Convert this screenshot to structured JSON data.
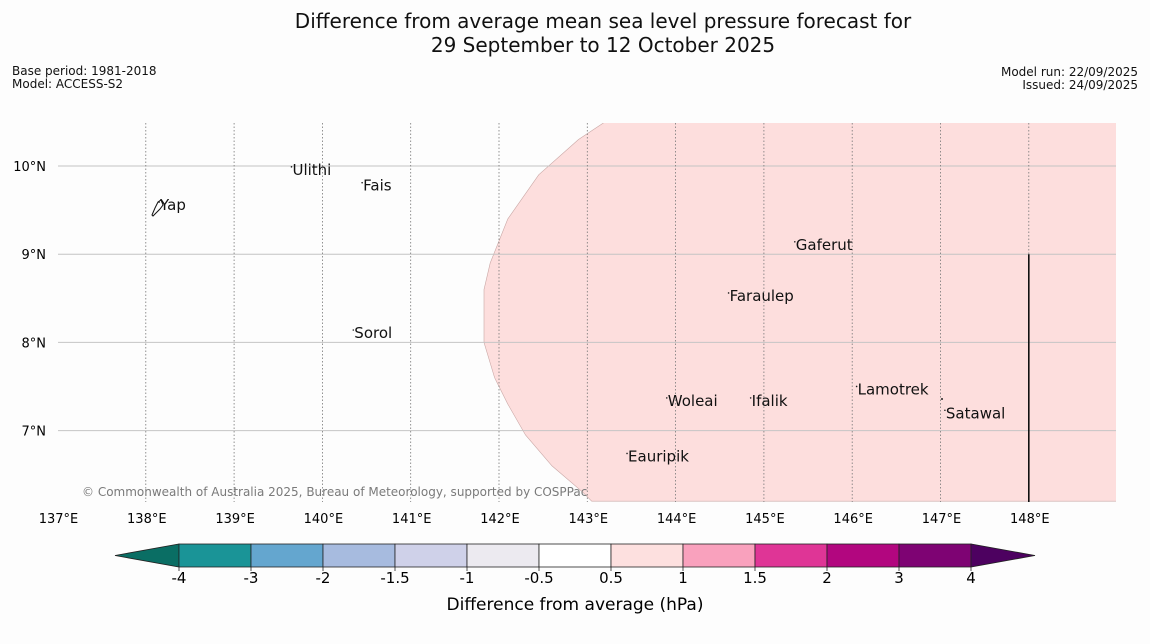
{
  "title": {
    "line1": "Difference from average mean sea level pressure forecast for",
    "line2": "29 September to 12 October 2025"
  },
  "meta_left": {
    "base_period": "Base period: 1981-2018",
    "model": "Model: ACCESS-S2"
  },
  "meta_right": {
    "model_run": "Model run: 22/09/2025",
    "issued": "Issued: 24/09/2025"
  },
  "map": {
    "lon_range": [
      137,
      149
    ],
    "lat_range": [
      6.2,
      10.5
    ],
    "lon_ticks": [
      137,
      138,
      139,
      140,
      141,
      142,
      143,
      144,
      145,
      146,
      147,
      148
    ],
    "lat_ticks": [
      7,
      8,
      9,
      10
    ],
    "lon_tick_labels": [
      "137°E",
      "138°E",
      "139°E",
      "140°E",
      "141°E",
      "142°E",
      "143°E",
      "144°E",
      "145°E",
      "146°E",
      "147°E",
      "148°E"
    ],
    "lat_tick_labels": [
      "7°N",
      "8°N",
      "9°N",
      "10°N"
    ],
    "shaded_category": "0.5 to 1",
    "shaded_color": "#fddedd",
    "places": [
      {
        "name": "Yap",
        "lon": 138.15,
        "lat": 9.5
      },
      {
        "name": "Ulithi",
        "lon": 139.65,
        "lat": 9.9
      },
      {
        "name": "Fais",
        "lon": 140.45,
        "lat": 9.72
      },
      {
        "name": "Sorol",
        "lon": 140.35,
        "lat": 8.05
      },
      {
        "name": "Gaferut",
        "lon": 145.35,
        "lat": 9.05
      },
      {
        "name": "Faraulep",
        "lon": 144.6,
        "lat": 8.47
      },
      {
        "name": "Woleai",
        "lon": 143.9,
        "lat": 7.28
      },
      {
        "name": "Ifalik",
        "lon": 144.85,
        "lat": 7.28
      },
      {
        "name": "Lamotrek",
        "lon": 146.05,
        "lat": 7.41
      },
      {
        "name": "Satawal",
        "lon": 147.05,
        "lat": 7.14
      },
      {
        "name": "Eauripik",
        "lon": 143.45,
        "lat": 6.65
      }
    ],
    "copyright": "© Commonwealth of Australia 2025, Bureau of Meteorology, supported by COSPPac"
  },
  "legend": {
    "label": "Difference from average (hPa)",
    "tick_labels": [
      "-4",
      "-3",
      "-2",
      "-1.5",
      "-1",
      "-0.5",
      "0.5",
      "1",
      "1.5",
      "2",
      "3",
      "4"
    ],
    "colors": [
      "#0a6e64",
      "#1a9497",
      "#64a6cf",
      "#a7bbdf",
      "#cfd1e9",
      "#eceaf0",
      "#ffffff",
      "#fde0df",
      "#f9a1bd",
      "#df3596",
      "#b2067f",
      "#7e0373",
      "#4d0160"
    ]
  }
}
